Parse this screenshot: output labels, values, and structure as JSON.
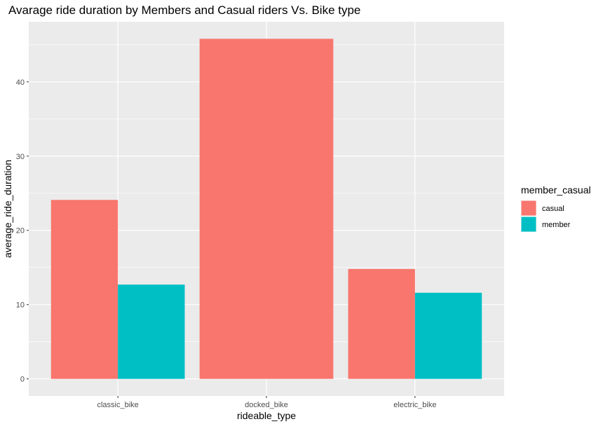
{
  "chart_data": {
    "type": "bar",
    "title": "Avarage ride duration by Members and Casual riders Vs. Bike type",
    "xlabel": "rideable_type",
    "ylabel": "average_ride_duration",
    "categories": [
      "classic_bike",
      "docked_bike",
      "electric_bike"
    ],
    "series": [
      {
        "name": "casual",
        "color": "#F8766D",
        "values": [
          24.1,
          45.8,
          14.8
        ]
      },
      {
        "name": "member",
        "color": "#00BFC4",
        "values": [
          12.7,
          null,
          11.6
        ]
      }
    ],
    "ylim": [
      -2.3,
      48.1
    ],
    "yticks": [
      0,
      10,
      20,
      30,
      40
    ],
    "ytick_labels": [
      "0",
      "10",
      "20",
      "30",
      "40"
    ],
    "grid": true,
    "panel_background": "#EBEBEB",
    "legend": {
      "title": "member_casual",
      "position": "right"
    }
  }
}
